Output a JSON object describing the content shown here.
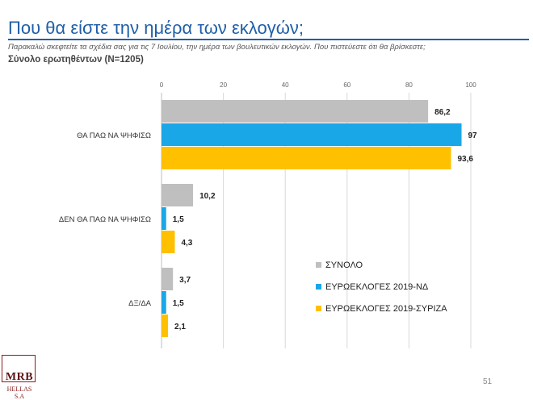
{
  "header": {
    "title": "Που θα είστε την ημέρα των εκλογών;",
    "subtitle": "Παρακαλώ σκεφτείτε τα σχέδια σας για τις 7 Ιουλίου, την ημέρα των βουλευτικών εκλογών. Που πιστεύεστε ότι θα βρίσκεστε;",
    "base": "Σύνολο ερωτηθέντων (N=1205)"
  },
  "footer": {
    "logo_main": "MRB",
    "logo_sub": "HELLAS S.A",
    "page_number": "51"
  },
  "chart_data": {
    "type": "bar",
    "orientation": "horizontal",
    "categories": [
      "ΘΑ ΠΑΩ ΝΑ ΨΗΦΙΣΩ",
      "ΔΕΝ ΘΑ ΠΑΩ ΝΑ ΨΗΦΙΣΩ",
      "ΔΞ/ΔΑ"
    ],
    "series": [
      {
        "name": "ΣΥΝΟΛΟ",
        "color": "#bfbfbf",
        "values": [
          86.2,
          10.2,
          3.7
        ],
        "labels": [
          "86,2",
          "10,2",
          "3,7"
        ]
      },
      {
        "name": "ΕΥΡΩΕΚΛΟΓΕΣ 2019-ΝΔ",
        "color": "#1aa7e8",
        "values": [
          97,
          1.5,
          1.5
        ],
        "labels": [
          "97",
          "1,5",
          "1,5"
        ]
      },
      {
        "name": "ΕΥΡΩΕΚΛΟΓΕΣ 2019-ΣΥΡΙΖΑ",
        "color": "#ffc000",
        "values": [
          93.6,
          4.3,
          2.1
        ],
        "labels": [
          "93,6",
          "4,3",
          "2,1"
        ]
      }
    ],
    "xlim": [
      0,
      100
    ],
    "xticks": [
      0,
      20,
      40,
      60,
      80,
      100
    ],
    "grid": true,
    "legend_position": "bottom-right"
  }
}
